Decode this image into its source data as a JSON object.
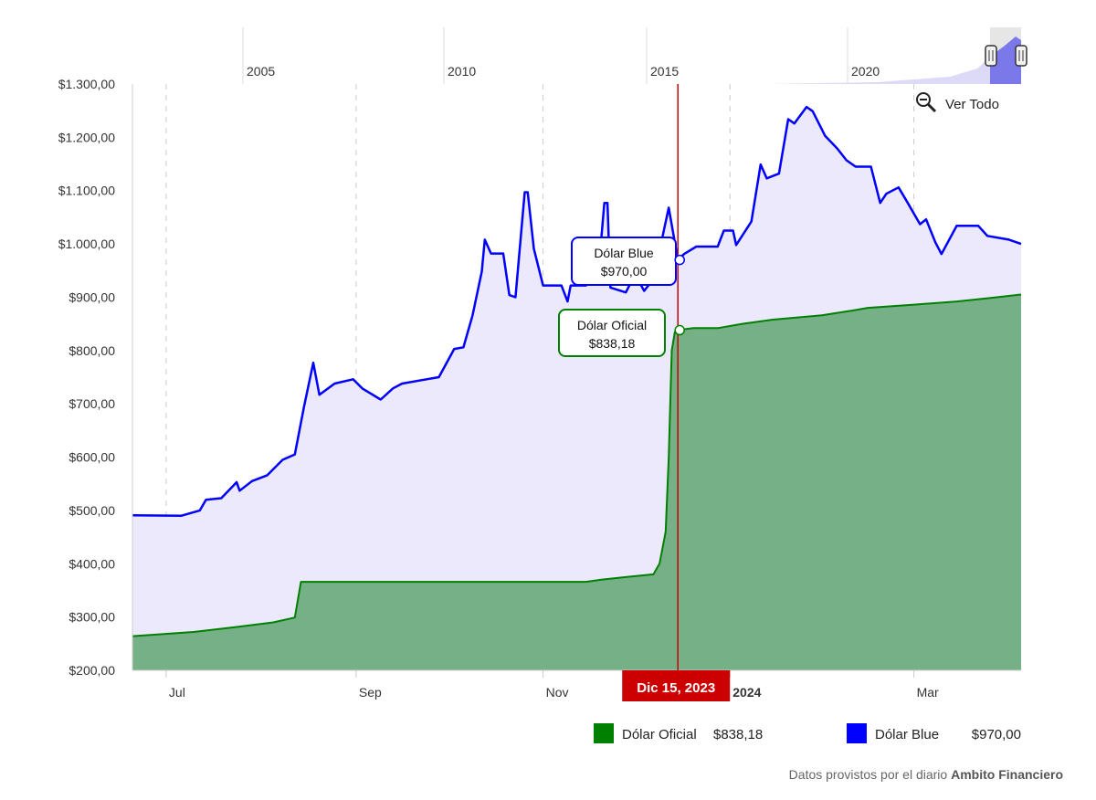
{
  "chart_data": {
    "type": "area",
    "title": "",
    "xlabel": "",
    "ylabel": "",
    "x_range": [
      "2023-06-20",
      "2024-04-05"
    ],
    "ylim": [
      200,
      1300
    ],
    "y_ticks": [
      200,
      300,
      400,
      500,
      600,
      700,
      800,
      900,
      1000,
      1100,
      1200,
      1300
    ],
    "y_tick_labels": [
      "$200,00",
      "$300,00",
      "$400,00",
      "$500,00",
      "$600,00",
      "$700,00",
      "$800,00",
      "$900,00",
      "$1.000,00",
      "$1.100,00",
      "$1.200,00",
      "$1.300,00"
    ],
    "x_ticks": [
      {
        "date": "2023-07-01",
        "label": "Jul",
        "bold": false
      },
      {
        "date": "2023-09-01",
        "label": "Sep",
        "bold": false
      },
      {
        "date": "2023-11-01",
        "label": "Nov",
        "bold": false
      },
      {
        "date": "2024-01-01",
        "label": "2024",
        "bold": true
      },
      {
        "date": "2024-03-01",
        "label": "Mar",
        "bold": false
      }
    ],
    "grid": "vertical dashed",
    "legend_placement": "bottom-right",
    "series": [
      {
        "name": "Dólar Blue",
        "color": "#0000ff",
        "fill": "#ebe9fb",
        "points": [
          [
            "2023-06-20",
            491
          ],
          [
            "2023-07-06",
            490
          ],
          [
            "2023-07-12",
            500
          ],
          [
            "2023-07-14",
            520
          ],
          [
            "2023-07-19",
            523
          ],
          [
            "2023-07-24",
            553
          ],
          [
            "2023-07-25",
            537
          ],
          [
            "2023-07-29",
            555
          ],
          [
            "2023-08-03",
            566
          ],
          [
            "2023-08-08",
            595
          ],
          [
            "2023-08-12",
            605
          ],
          [
            "2023-08-15",
            695
          ],
          [
            "2023-08-18",
            777
          ],
          [
            "2023-08-20",
            717
          ],
          [
            "2023-08-25",
            738
          ],
          [
            "2023-08-31",
            746
          ],
          [
            "2023-09-03",
            729
          ],
          [
            "2023-09-09",
            708
          ],
          [
            "2023-09-13",
            729
          ],
          [
            "2023-09-16",
            738
          ],
          [
            "2023-09-24",
            746
          ],
          [
            "2023-09-28",
            750
          ],
          [
            "2023-10-03",
            803
          ],
          [
            "2023-10-06",
            806
          ],
          [
            "2023-10-09",
            866
          ],
          [
            "2023-10-12",
            948
          ],
          [
            "2023-10-13",
            1008
          ],
          [
            "2023-10-15",
            982
          ],
          [
            "2023-10-19",
            982
          ],
          [
            "2023-10-21",
            904
          ],
          [
            "2023-10-23",
            900
          ],
          [
            "2023-10-26",
            1097
          ],
          [
            "2023-10-27",
            1097
          ],
          [
            "2023-10-29",
            991
          ],
          [
            "2023-11-01",
            922
          ],
          [
            "2023-11-07",
            922
          ],
          [
            "2023-11-09",
            892
          ],
          [
            "2023-11-10",
            922
          ],
          [
            "2023-11-15",
            922
          ],
          [
            "2023-11-19",
            943
          ],
          [
            "2023-11-21",
            1077
          ],
          [
            "2023-11-22",
            1077
          ],
          [
            "2023-11-23",
            918
          ],
          [
            "2023-11-28",
            909
          ],
          [
            "2023-12-01",
            943
          ],
          [
            "2023-12-04",
            912
          ],
          [
            "2023-12-07",
            934
          ],
          [
            "2023-12-12",
            1068
          ],
          [
            "2023-12-15",
            970
          ],
          [
            "2023-12-17",
            981
          ],
          [
            "2023-12-21",
            995
          ],
          [
            "2023-12-28",
            995
          ],
          [
            "2023-12-30",
            1025
          ],
          [
            "2024-01-02",
            1025
          ],
          [
            "2024-01-03",
            998
          ],
          [
            "2024-01-08",
            1042
          ],
          [
            "2024-01-11",
            1149
          ],
          [
            "2024-01-13",
            1123
          ],
          [
            "2024-01-17",
            1132
          ],
          [
            "2024-01-20",
            1234
          ],
          [
            "2024-01-22",
            1226
          ],
          [
            "2024-01-26",
            1257
          ],
          [
            "2024-01-28",
            1249
          ],
          [
            "2024-02-01",
            1203
          ],
          [
            "2024-02-05",
            1179
          ],
          [
            "2024-02-08",
            1157
          ],
          [
            "2024-02-11",
            1145
          ],
          [
            "2024-02-16",
            1145
          ],
          [
            "2024-02-19",
            1077
          ],
          [
            "2024-02-21",
            1094
          ],
          [
            "2024-02-25",
            1106
          ],
          [
            "2024-02-28",
            1077
          ],
          [
            "2024-03-03",
            1037
          ],
          [
            "2024-03-05",
            1046
          ],
          [
            "2024-03-08",
            1003
          ],
          [
            "2024-03-10",
            981
          ],
          [
            "2024-03-15",
            1034
          ],
          [
            "2024-03-22",
            1034
          ],
          [
            "2024-03-25",
            1015
          ],
          [
            "2024-04-01",
            1008
          ],
          [
            "2024-04-05",
            1000
          ]
        ]
      },
      {
        "name": "Dólar Oficial",
        "color": "#008000",
        "fill": "#76b087",
        "points": [
          [
            "2023-06-20",
            264
          ],
          [
            "2023-07-10",
            272
          ],
          [
            "2023-07-25",
            282
          ],
          [
            "2023-08-05",
            290
          ],
          [
            "2023-08-12",
            299
          ],
          [
            "2023-08-14",
            366
          ],
          [
            "2023-11-15",
            366
          ],
          [
            "2023-11-20",
            370
          ],
          [
            "2023-11-28",
            375
          ],
          [
            "2023-12-07",
            380
          ],
          [
            "2023-12-09",
            400
          ],
          [
            "2023-12-11",
            460
          ],
          [
            "2023-12-12",
            600
          ],
          [
            "2023-12-13",
            800
          ],
          [
            "2023-12-14",
            835
          ],
          [
            "2023-12-15",
            838.18
          ],
          [
            "2023-12-20",
            842
          ],
          [
            "2023-12-28",
            842
          ],
          [
            "2024-01-05",
            850
          ],
          [
            "2024-01-15",
            858
          ],
          [
            "2024-01-31",
            866
          ],
          [
            "2024-02-10",
            875
          ],
          [
            "2024-02-15",
            880
          ],
          [
            "2024-03-01",
            886
          ],
          [
            "2024-03-15",
            892
          ],
          [
            "2024-03-25",
            898
          ],
          [
            "2024-04-05",
            905
          ]
        ]
      }
    ],
    "crosshair": {
      "date": "2023-12-15",
      "label": "Dic 15, 2023",
      "color": "#cc0000"
    },
    "tooltips": [
      {
        "series": "Dólar Blue",
        "label": "Dólar Blue",
        "value": "$970,00"
      },
      {
        "series": "Dólar Oficial",
        "label": "Dólar Oficial",
        "value": "$838,18"
      }
    ],
    "legend": [
      {
        "name": "Dólar Oficial",
        "value": "$838,18",
        "color": "#008000"
      },
      {
        "name": "Dólar Blue",
        "value": "$970,00",
        "color": "#0000ff"
      }
    ],
    "navigator": {
      "year_labels": [
        "2005",
        "2010",
        "2015",
        "2020"
      ],
      "selected_range": [
        "2023-06-20",
        "2024-04-05"
      ]
    }
  },
  "controls": {
    "zoom_reset_label": "Ver Todo"
  },
  "credit": {
    "prefix": "Datos provistos por el diario",
    "source": "Ambito Financiero"
  }
}
